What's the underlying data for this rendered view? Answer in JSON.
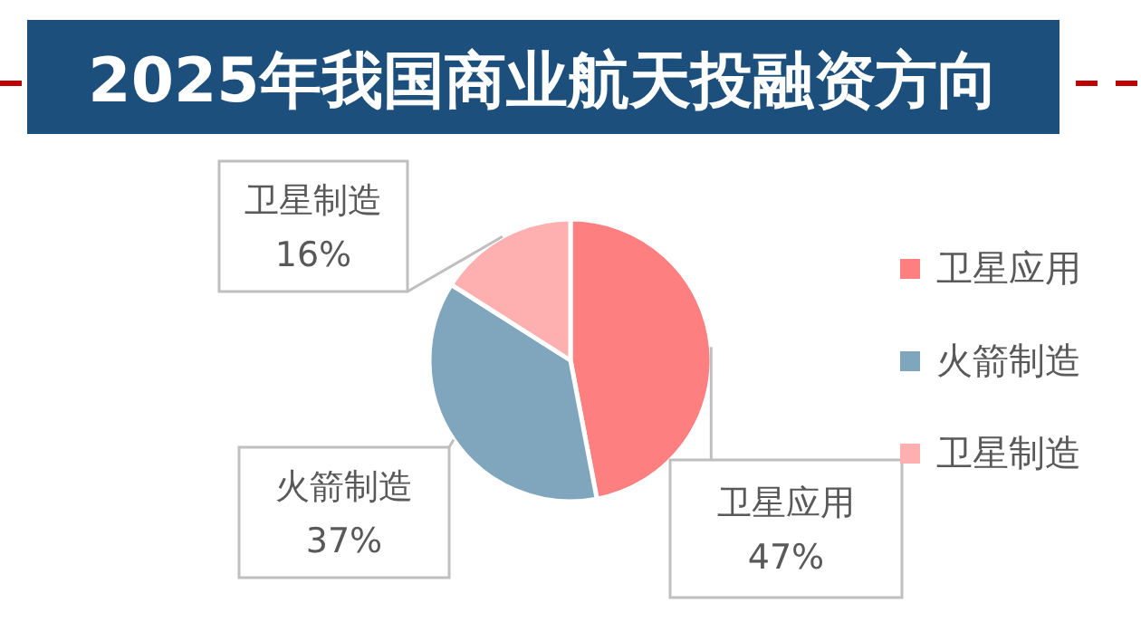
{
  "chart_data": {
    "type": "pie",
    "title": "2025年我国商业航天投融资方向",
    "categories": [
      "卫星应用",
      "火箭制造",
      "卫星制造"
    ],
    "values": [
      47,
      37,
      16
    ],
    "value_labels": [
      "47%",
      "37%",
      "16%"
    ],
    "colors": [
      "#fe7f7f",
      "#7fa6bc",
      "#feb0b0"
    ],
    "legend": "right"
  }
}
